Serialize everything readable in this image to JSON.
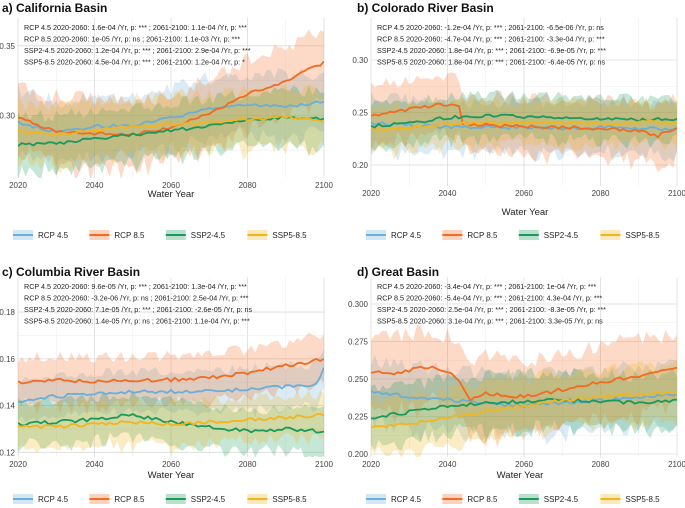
{
  "colors": {
    "RCP 4.5": "#6baed6",
    "RCP 8.5": "#f26b21",
    "SSP2-4.5": "#1a9a5a",
    "SSP5-8.5": "#f2b51d"
  },
  "legend_labels": [
    "RCP 4.5",
    "RCP 8.5",
    "SSP2-4.5",
    "SSP5-8.5"
  ],
  "xlabel": "Water Year",
  "chart_data": [
    {
      "type": "line",
      "title": "a) California Basin",
      "xlabel": "Water Year",
      "ylabel": "",
      "xlim": [
        2020,
        2100
      ],
      "ylim": [
        0.255,
        0.37
      ],
      "xticks": [
        2020,
        2040,
        2060,
        2080,
        2100
      ],
      "yticks": [
        0.25,
        0.3,
        0.35
      ],
      "ytick_labels": [
        "0.25",
        "0.30",
        "0.35"
      ],
      "annotations": [
        "RCP 4.5 2020-2060: 1.6e-04 /Yr, p: *** ;  2061-2100: 1.1e-04 /Yr, p: ***",
        "RCP 8.5 2020-2060: 1e-05 /Yr, p: ns ;  2061-2100: 1.1e-03 /Yr, p: ***",
        "SSP2-4.5 2020-2060: 1.2e-04 /Yr, p: *** ;  2061-2100: 2.9e-04 /Yr, p: ***",
        "SSP5-8.5 2020-2060: 4.5e-04 /Yr, p: *** ;  2061-2100: 1.2e-04 /Yr, p: *"
      ],
      "series": [
        {
          "name": "RCP 4.5",
          "x": [
            2020,
            2030,
            2040,
            2050,
            2060,
            2070,
            2080,
            2090,
            2100
          ],
          "y": [
            0.295,
            0.288,
            0.292,
            0.293,
            0.298,
            0.305,
            0.308,
            0.306,
            0.31
          ],
          "band": 0.022
        },
        {
          "name": "RCP 8.5",
          "x": [
            2020,
            2030,
            2040,
            2050,
            2060,
            2070,
            2080,
            2090,
            2100
          ],
          "y": [
            0.298,
            0.289,
            0.287,
            0.286,
            0.291,
            0.301,
            0.315,
            0.325,
            0.338
          ],
          "band": 0.024
        },
        {
          "name": "SSP2-4.5",
          "x": [
            2020,
            2030,
            2040,
            2050,
            2060,
            2070,
            2080,
            2090,
            2100
          ],
          "y": [
            0.279,
            0.28,
            0.283,
            0.286,
            0.289,
            0.293,
            0.296,
            0.299,
            0.297
          ],
          "band": 0.02
        },
        {
          "name": "SSP5-8.5",
          "x": [
            2020,
            2030,
            2040,
            2050,
            2060,
            2070,
            2080,
            2090,
            2100
          ],
          "y": [
            0.288,
            0.286,
            0.29,
            0.292,
            0.294,
            0.295,
            0.297,
            0.299,
            0.296
          ],
          "band": 0.02
        }
      ]
    },
    {
      "type": "line",
      "title": "b) Colorado River Basin",
      "xlabel": "Water Year",
      "ylabel": "",
      "xlim": [
        2020,
        2100
      ],
      "ylim": [
        0.18,
        0.34
      ],
      "xticks": [
        2020,
        2040,
        2060,
        2080,
        2100
      ],
      "yticks": [
        0.2,
        0.25,
        0.3
      ],
      "ytick_labels": [
        "0.20",
        "0.25",
        "0.30"
      ],
      "annotations": [
        "RCP 4.5 2020-2060: -1.2e-04 /Yr, p: *** ;  2061-2100: -6.5e-06 /Yr, p: ns",
        "RCP 8.5 2020-2060: -4.7e-04 /Yr, p: *** ;  2061-2100: -3.3e-04 /Yr, p: ***",
        "SSP2-4.5 2020-2060: 1.8e-04 /Yr, p: *** ;  2061-2100: -6.9e-05 /Yr, p: ***",
        "SSP5-8.5 2020-2060: 1.8e-04 /Yr, p: *** ;  2061-2100: -6.4e-05 /Yr, p: ns"
      ],
      "series": [
        {
          "name": "RCP 4.5",
          "x": [
            2020,
            2030,
            2040,
            2045,
            2050,
            2060,
            2070,
            2080,
            2090,
            2100
          ],
          "y": [
            0.24,
            0.238,
            0.236,
            0.236,
            0.236,
            0.236,
            0.235,
            0.236,
            0.235,
            0.234
          ],
          "band": 0.024
        },
        {
          "name": "RCP 8.5",
          "x": [
            2020,
            2025,
            2030,
            2035,
            2040,
            2043,
            2044,
            2050,
            2060,
            2070,
            2080,
            2090,
            2095,
            2100
          ],
          "y": [
            0.246,
            0.25,
            0.253,
            0.256,
            0.258,
            0.255,
            0.239,
            0.238,
            0.237,
            0.236,
            0.235,
            0.233,
            0.228,
            0.236
          ],
          "band": 0.028
        },
        {
          "name": "SSP2-4.5",
          "x": [
            2020,
            2030,
            2040,
            2050,
            2060,
            2070,
            2080,
            2090,
            2100
          ],
          "y": [
            0.237,
            0.24,
            0.245,
            0.247,
            0.246,
            0.245,
            0.244,
            0.243,
            0.244
          ],
          "band": 0.02
        },
        {
          "name": "SSP5-8.5",
          "x": [
            2020,
            2030,
            2040,
            2050,
            2060,
            2070,
            2080,
            2090,
            2100
          ],
          "y": [
            0.234,
            0.236,
            0.239,
            0.24,
            0.24,
            0.24,
            0.239,
            0.241,
            0.24
          ],
          "band": 0.02
        }
      ]
    },
    {
      "type": "line",
      "title": "c) Columbia River Basin",
      "xlabel": "Water Year",
      "ylabel": "",
      "xlim": [
        2020,
        2100
      ],
      "ylim": [
        0.118,
        0.195
      ],
      "xticks": [
        2020,
        2040,
        2060,
        2080,
        2100
      ],
      "yticks": [
        0.12,
        0.14,
        0.16,
        0.18
      ],
      "ytick_labels": [
        "0.12",
        "0.14",
        "0.16",
        "0.18"
      ],
      "annotations": [
        "RCP 4.5 2020-2060: 9.6e-05 /Yr, p: *** ;  2061-2100: 1.3e-04 /Yr, p: ***",
        "RCP 8.5 2020-2060: -3.2e-06 /Yr, p: ns ;  2061-2100: 2.5e-04 /Yr, p: ***",
        "SSP2-4.5 2020-2060: 7.1e-05 /Yr, p: *** ;  2061-2100: -2.6e-05 /Yr, p: ns",
        "SSP5-8.5 2020-2060: 1.4e-05 /Yr, p: ns ;  2061-2100: 1.1e-04 /Yr, p: ***"
      ],
      "series": [
        {
          "name": "RCP 4.5",
          "x": [
            2020,
            2030,
            2040,
            2050,
            2060,
            2070,
            2080,
            2090,
            2098,
            2100
          ],
          "y": [
            0.142,
            0.144,
            0.145,
            0.146,
            0.146,
            0.146,
            0.147,
            0.148,
            0.149,
            0.156
          ],
          "band": 0.009
        },
        {
          "name": "RCP 8.5",
          "x": [
            2020,
            2030,
            2040,
            2050,
            2060,
            2070,
            2080,
            2090,
            2100
          ],
          "y": [
            0.15,
            0.151,
            0.15,
            0.151,
            0.151,
            0.152,
            0.154,
            0.157,
            0.16
          ],
          "band": 0.01
        },
        {
          "name": "SSP2-4.5",
          "x": [
            2020,
            2030,
            2040,
            2050,
            2060,
            2070,
            2080,
            2090,
            2100
          ],
          "y": [
            0.132,
            0.133,
            0.134,
            0.136,
            0.133,
            0.131,
            0.129,
            0.13,
            0.129
          ],
          "band": 0.009
        },
        {
          "name": "SSP5-8.5",
          "x": [
            2020,
            2030,
            2040,
            2050,
            2060,
            2070,
            2080,
            2090,
            2100
          ],
          "y": [
            0.131,
            0.131,
            0.132,
            0.133,
            0.132,
            0.133,
            0.134,
            0.135,
            0.136
          ],
          "band": 0.009
        }
      ]
    },
    {
      "type": "line",
      "title": "d) Great Basin",
      "xlabel": "Water Year",
      "ylabel": "",
      "xlim": [
        2020,
        2100
      ],
      "ylim": [
        0.198,
        0.318
      ],
      "xticks": [
        2020,
        2040,
        2060,
        2080,
        2100
      ],
      "yticks": [
        0.2,
        0.225,
        0.25,
        0.275,
        0.3
      ],
      "ytick_labels": [
        "0.200",
        "0.225",
        "0.250",
        "0.275",
        "0.300"
      ],
      "annotations": [
        "RCP 4.5 2020-2060: -3.4e-04 /Yr, p: *** ;  2061-2100: 1e-04 /Yr, p: ***",
        "RCP 8.5 2020-2060: -5.4e-04 /Yr, p: *** ;  2061-2100: 4.3e-04 /Yr, p: ***",
        "SSP2-4.5 2020-2060: 2.5e-04 /Yr, p: *** ;  2061-2100: -8.3e-05 /Yr, p: ***",
        "SSP5-8.5 2020-2060: 3.1e-04 /Yr, p: *** ;  2061-2100: 3.3e-05 /Yr, p: ns"
      ],
      "series": [
        {
          "name": "RCP 4.5",
          "x": [
            2020,
            2030,
            2040,
            2050,
            2060,
            2070,
            2080,
            2090,
            2100
          ],
          "y": [
            0.242,
            0.238,
            0.236,
            0.234,
            0.232,
            0.234,
            0.236,
            0.238,
            0.24
          ],
          "band": 0.02
        },
        {
          "name": "RCP 8.5",
          "x": [
            2020,
            2025,
            2030,
            2035,
            2040,
            2043,
            2046,
            2050,
            2060,
            2070,
            2080,
            2090,
            2100
          ],
          "y": [
            0.255,
            0.253,
            0.256,
            0.258,
            0.255,
            0.25,
            0.236,
            0.24,
            0.238,
            0.243,
            0.248,
            0.252,
            0.258
          ],
          "band": 0.024
        },
        {
          "name": "SSP2-4.5",
          "x": [
            2020,
            2030,
            2040,
            2050,
            2060,
            2070,
            2080,
            2090,
            2100
          ],
          "y": [
            0.224,
            0.228,
            0.232,
            0.234,
            0.235,
            0.236,
            0.235,
            0.234,
            0.236
          ],
          "band": 0.018
        },
        {
          "name": "SSP5-8.5",
          "x": [
            2020,
            2030,
            2040,
            2050,
            2060,
            2070,
            2080,
            2090,
            2100
          ],
          "y": [
            0.218,
            0.22,
            0.224,
            0.229,
            0.232,
            0.236,
            0.238,
            0.24,
            0.241
          ],
          "band": 0.018
        }
      ]
    }
  ]
}
